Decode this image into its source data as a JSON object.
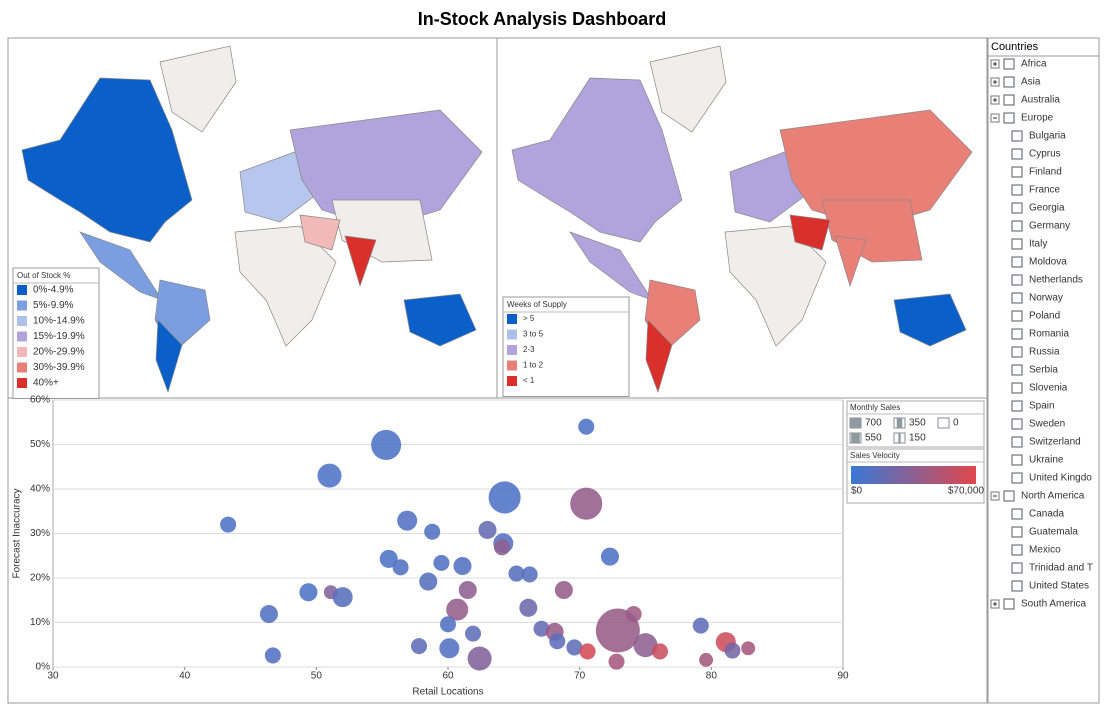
{
  "title": "In-Stock Analysis Dashboard",
  "maps": [
    {
      "legend_title": "Out of Stock %",
      "items": [
        {
          "label": "0%-4.9%",
          "color": "#0a5fc8"
        },
        {
          "label": "5%-9.9%",
          "color": "#7a9ee0"
        },
        {
          "label": "10%-14.9%",
          "color": "#adc0ea"
        },
        {
          "label": "15%-19.9%",
          "color": "#b0a4dc"
        },
        {
          "label": "20%-29.9%",
          "color": "#f2b9b9"
        },
        {
          "label": "30%-39.9%",
          "color": "#e98078"
        },
        {
          "label": "40%+",
          "color": "#d9302b"
        }
      ]
    },
    {
      "legend_title": "Weeks of Supply",
      "items": [
        {
          "label": "> 5",
          "color": "#0a5fc8"
        },
        {
          "label": "3 to 5",
          "color": "#adc0ea"
        },
        {
          "label": "2-3",
          "color": "#b0a4dc"
        },
        {
          "label": "1 to 2",
          "color": "#e98078"
        },
        {
          "label": "< 1",
          "color": "#d9302b"
        }
      ]
    }
  ],
  "tree": {
    "title": "Countries",
    "groups": [
      {
        "label": "Africa",
        "open": false,
        "children": []
      },
      {
        "label": "Asia",
        "open": false,
        "children": []
      },
      {
        "label": "Australia",
        "open": false,
        "children": []
      },
      {
        "label": "Europe",
        "open": true,
        "children": [
          "Bulgaria",
          "Cyprus",
          "Finland",
          "France",
          "Georgia",
          "Germany",
          "Italy",
          "Moldova",
          "Netherlands",
          "Norway",
          "Poland",
          "Romania",
          "Russia",
          "Serbia",
          "Slovenia",
          "Spain",
          "Sweden",
          "Switzerland",
          "Ukraine",
          "United Kingdo"
        ]
      },
      {
        "label": "North America",
        "open": true,
        "children": [
          "Canada",
          "Guatemala",
          "Mexico",
          "Trinidad and T",
          "United States"
        ]
      },
      {
        "label": "South America",
        "open": false,
        "children": []
      }
    ]
  },
  "chart_data": {
    "type": "scatter",
    "x_label": "Retail Locations",
    "y_label": "Forecast Inaccuracy",
    "xlim": [
      30,
      90
    ],
    "xticks": [
      30,
      40,
      50,
      60,
      70,
      80,
      90
    ],
    "ylim": [
      0,
      60
    ],
    "yticks": [
      {
        "value": 0,
        "label": "0%"
      },
      {
        "value": 10,
        "label": "10%"
      },
      {
        "value": 20,
        "label": "20%"
      },
      {
        "value": 30,
        "label": "30%"
      },
      {
        "value": 40,
        "label": "40%"
      },
      {
        "value": 50,
        "label": "50%"
      },
      {
        "value": 60,
        "label": "60%"
      }
    ],
    "grid": true,
    "size_legend": {
      "title": "Monthly Sales",
      "values": [
        700,
        350,
        0,
        550,
        150
      ]
    },
    "color_legend": {
      "title": "Sales Velocity",
      "colors": [
        "#3a78d6",
        "#e0474c"
      ],
      "min": {
        "value": 0,
        "label": "$0"
      },
      "max": {
        "value": 70000,
        "label": "$70,000"
      }
    },
    "x": [
      43.3,
      55.3,
      51.0,
      70.5,
      64.3,
      70.5,
      56.9,
      58.8,
      63.0,
      64.2,
      64.1,
      72.3,
      55.5,
      56.4,
      59.5,
      61.1,
      65.2,
      66.2,
      58.5,
      61.5,
      68.8,
      49.4,
      51.1,
      52.0,
      60.7,
      66.1,
      46.4,
      60.0,
      61.9,
      67.1,
      68.1,
      74.1,
      72.9,
      79.2,
      81.1,
      75.0,
      76.1,
      69.6,
      68.3,
      70.6,
      57.8,
      60.1,
      62.4,
      46.7,
      72.8,
      79.6,
      81.6,
      82.8
    ],
    "values": [
      32.0,
      49.9,
      43.0,
      54.0,
      38.1,
      36.7,
      32.9,
      30.4,
      30.8,
      27.8,
      26.9,
      24.8,
      24.3,
      22.4,
      23.4,
      22.7,
      21.0,
      20.8,
      19.2,
      17.3,
      17.3,
      16.8,
      16.8,
      15.7,
      12.9,
      13.3,
      11.9,
      9.6,
      7.5,
      8.6,
      7.9,
      11.9,
      8.2,
      9.3,
      5.6,
      4.9,
      3.5,
      4.4,
      5.8,
      3.5,
      4.7,
      4.2,
      1.9,
      2.6,
      1.2,
      1.6,
      3.7,
      4.2
    ],
    "sizes": [
      93,
      327,
      209,
      93,
      372,
      372,
      145,
      93,
      118,
      145,
      93,
      118,
      118,
      93,
      93,
      118,
      93,
      93,
      118,
      118,
      118,
      118,
      70,
      145,
      175,
      118,
      118,
      93,
      93,
      93,
      118,
      93,
      700,
      93,
      145,
      209,
      93,
      93,
      93,
      93,
      93,
      145,
      209,
      93,
      93,
      70,
      93,
      70
    ],
    "velocity": [
      8000,
      8000,
      8000,
      8000,
      8000,
      38000,
      10000,
      10000,
      18000,
      10000,
      35000,
      8000,
      8000,
      10000,
      10000,
      10000,
      12000,
      12000,
      12000,
      35000,
      38000,
      8000,
      30000,
      12000,
      38000,
      22000,
      10000,
      10000,
      15000,
      18000,
      40000,
      42000,
      40000,
      15000,
      62000,
      35000,
      60000,
      15000,
      15000,
      65000,
      15000,
      10000,
      30000,
      10000,
      45000,
      45000,
      25000,
      45000
    ]
  }
}
